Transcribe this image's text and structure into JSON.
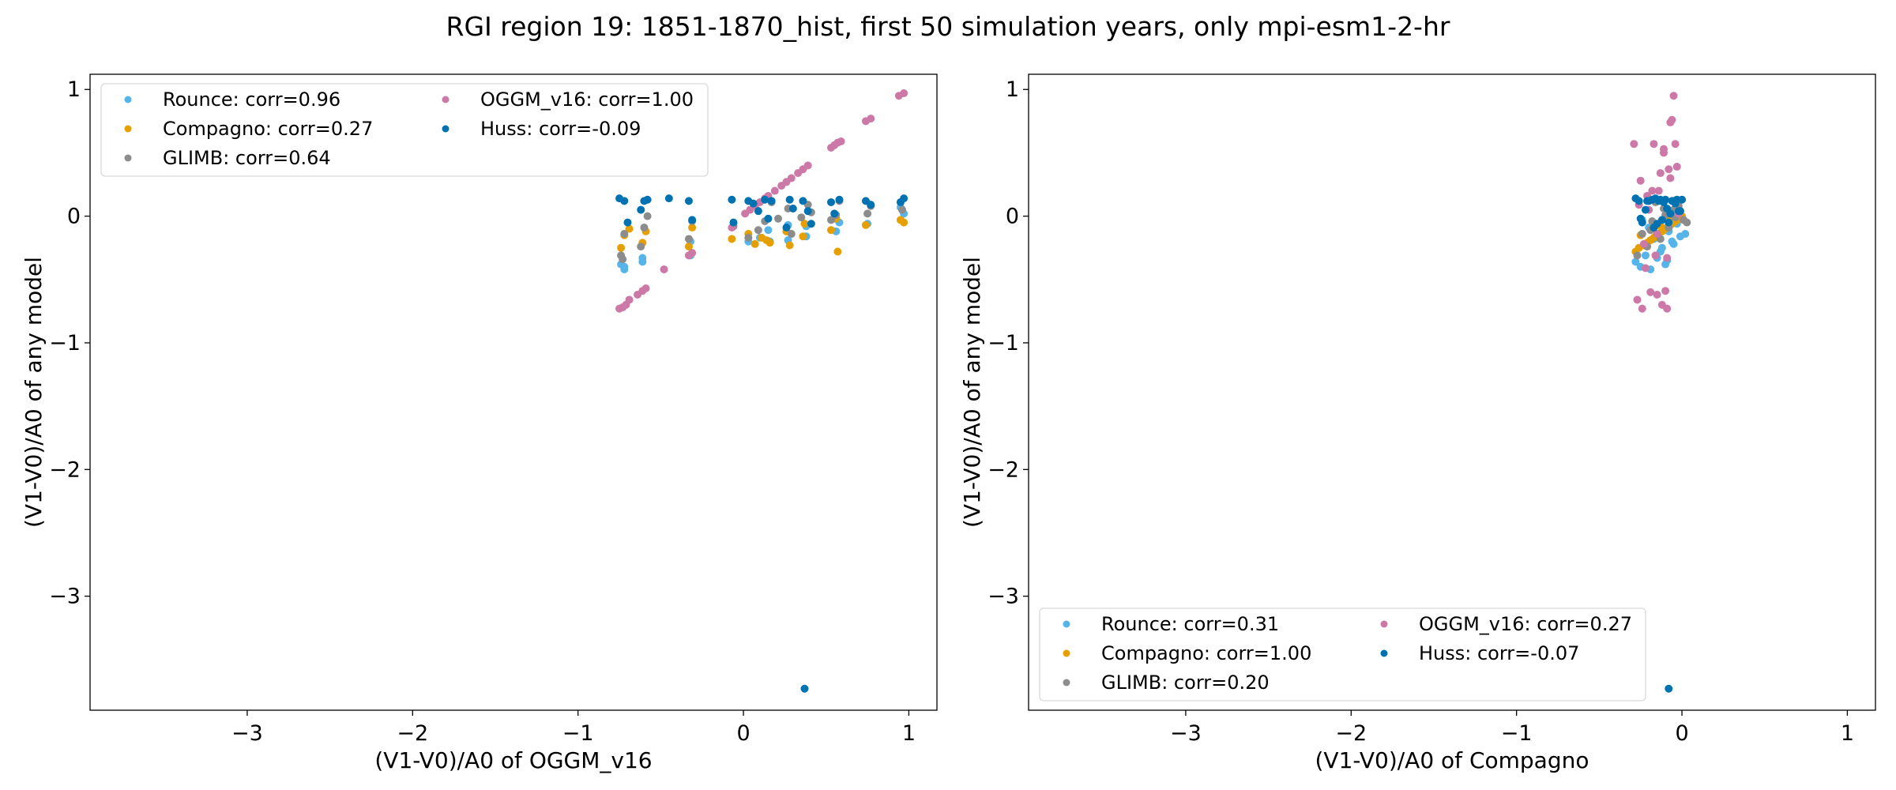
{
  "figure": {
    "title": "RGI region 19: 1851-1870_hist, first 50 simulation years, only mpi-esm1-2-hr"
  },
  "colors": {
    "Rounce": "#56b4e9",
    "Compagno": "#e69f00",
    "GLIMB": "#8c8c8c",
    "OGGM_v16": "#cc79a7",
    "Huss": "#0072b2"
  },
  "chart_data": [
    {
      "type": "scatter",
      "xlabel": "(V1-V0)/A0 of OGGM_v16",
      "ylabel": "(V1-V0)/A0 of any model",
      "xlim": [
        -3.95,
        1.17
      ],
      "ylim": [
        -3.9,
        1.12
      ],
      "xticks": [
        -3,
        -2,
        -1,
        0,
        1
      ],
      "yticks": [
        1,
        0,
        -1,
        -2,
        -3
      ],
      "xtick_labels": [
        "−3",
        "−2",
        "−1",
        "0",
        "1"
      ],
      "ytick_labels": [
        "1",
        "0",
        "−1",
        "−2",
        "−3"
      ],
      "legend_position": "upper-left",
      "legend_columns": 2,
      "legend": [
        "Rounce: corr=0.96",
        "Compagno: corr=0.27",
        "GLIMB: corr=0.64",
        "OGGM_v16: corr=1.00",
        "Huss: corr=-0.09"
      ],
      "series": [
        {
          "key": "Rounce",
          "x": [
            -0.74,
            -0.72,
            -0.72,
            -0.61,
            -0.61,
            -0.32,
            -0.32,
            0.03,
            0.1,
            0.15,
            0.16,
            0.27,
            0.27,
            0.38,
            0.38,
            0.56,
            0.58,
            0.75,
            0.95,
            0.97
          ],
          "y": [
            -0.38,
            -0.4,
            -0.42,
            -0.33,
            -0.36,
            -0.2,
            -0.31,
            -0.2,
            -0.17,
            -0.11,
            -0.2,
            -0.19,
            -0.07,
            -0.16,
            -0.08,
            -0.12,
            -0.05,
            -0.06,
            0.07,
            0.02
          ]
        },
        {
          "key": "Compagno",
          "x": [
            -0.74,
            -0.72,
            -0.69,
            -0.61,
            -0.59,
            -0.33,
            -0.31,
            -0.07,
            0.03,
            0.07,
            0.11,
            0.14,
            0.16,
            0.26,
            0.28,
            0.36,
            0.37,
            0.53,
            0.56,
            0.57,
            0.74,
            0.95,
            0.97
          ],
          "y": [
            -0.25,
            -0.15,
            -0.1,
            -0.21,
            -0.12,
            -0.24,
            -0.09,
            -0.18,
            -0.14,
            -0.22,
            -0.17,
            -0.19,
            -0.21,
            -0.12,
            -0.23,
            -0.16,
            -0.06,
            -0.11,
            -0.02,
            -0.28,
            -0.07,
            -0.03,
            -0.05
          ]
        },
        {
          "key": "GLIMB",
          "x": [
            -0.74,
            -0.73,
            -0.72,
            -0.62,
            -0.6,
            -0.58,
            -0.33,
            -0.31,
            -0.06,
            0.03,
            0.09,
            0.13,
            0.17,
            0.21,
            0.27,
            0.29,
            0.35,
            0.39,
            0.41,
            0.53,
            0.56,
            0.58,
            0.75,
            0.77,
            0.96
          ],
          "y": [
            -0.31,
            -0.34,
            -0.14,
            -0.24,
            -0.09,
            0.0,
            -0.18,
            -0.04,
            -0.08,
            -0.17,
            -0.11,
            -0.04,
            0.11,
            -0.02,
            0.06,
            -0.14,
            -0.01,
            0.09,
            0.03,
            -0.03,
            0.01,
            0.12,
            0.02,
            0.08,
            0.05
          ]
        },
        {
          "key": "OGGM_v16",
          "x": [
            -0.75,
            -0.73,
            -0.71,
            -0.69,
            -0.64,
            -0.61,
            -0.59,
            -0.48,
            -0.33,
            -0.31,
            -0.07,
            0.01,
            0.04,
            0.07,
            0.1,
            0.13,
            0.15,
            0.19,
            0.23,
            0.26,
            0.29,
            0.33,
            0.36,
            0.39,
            0.53,
            0.55,
            0.57,
            0.59,
            0.74,
            0.77,
            0.94,
            0.97
          ],
          "y": [
            -0.73,
            -0.72,
            -0.7,
            -0.66,
            -0.62,
            -0.59,
            -0.57,
            -0.42,
            -0.31,
            -0.29,
            -0.09,
            0.02,
            0.05,
            0.08,
            0.11,
            0.14,
            0.16,
            0.2,
            0.24,
            0.27,
            0.3,
            0.34,
            0.37,
            0.4,
            0.54,
            0.56,
            0.58,
            0.59,
            0.75,
            0.77,
            0.95,
            0.97
          ]
        },
        {
          "key": "Huss",
          "x": [
            -0.75,
            -0.72,
            -0.7,
            -0.62,
            -0.6,
            -0.58,
            -0.45,
            -0.33,
            -0.31,
            -0.07,
            -0.06,
            0.03,
            0.06,
            0.09,
            0.13,
            0.15,
            0.17,
            0.26,
            0.28,
            0.3,
            0.36,
            0.39,
            0.41,
            0.53,
            0.55,
            0.58,
            0.74,
            0.77,
            0.95,
            0.97,
            0.37
          ],
          "y": [
            0.14,
            0.12,
            -0.05,
            0.05,
            0.12,
            0.13,
            0.14,
            0.12,
            -0.03,
            0.13,
            -0.05,
            0.12,
            0.1,
            0.04,
            0.13,
            -0.02,
            0.12,
            -0.09,
            0.13,
            0.06,
            0.12,
            0.04,
            -0.06,
            0.11,
            0.02,
            0.13,
            0.12,
            0.09,
            0.11,
            0.14,
            -3.73
          ]
        }
      ]
    },
    {
      "type": "scatter",
      "xlabel": "(V1-V0)/A0 of Compagno",
      "ylabel": "(V1-V0)/A0 of any model",
      "xlim": [
        -3.95,
        1.17
      ],
      "ylim": [
        -3.9,
        1.12
      ],
      "xticks": [
        -3,
        -2,
        -1,
        0,
        1
      ],
      "yticks": [
        1,
        0,
        -1,
        -2,
        -3
      ],
      "xtick_labels": [
        "−3",
        "−2",
        "−1",
        "0",
        "1"
      ],
      "ytick_labels": [
        "1",
        "0",
        "−1",
        "−2",
        "−3"
      ],
      "legend_position": "lower-left",
      "legend_columns": 2,
      "legend": [
        "Rounce: corr=0.31",
        "Compagno: corr=1.00",
        "GLIMB: corr=0.20",
        "OGGM_v16: corr=0.27",
        "Huss: corr=-0.07"
      ],
      "series": [
        {
          "key": "Rounce",
          "x": [
            -0.28,
            -0.25,
            -0.22,
            -0.19,
            -0.17,
            -0.15,
            -0.12,
            -0.1,
            -0.08,
            -0.06,
            -0.03,
            -0.01,
            0.02,
            -0.24,
            -0.2,
            -0.13,
            -0.09,
            -0.05
          ],
          "y": [
            -0.36,
            -0.4,
            -0.31,
            -0.42,
            -0.18,
            -0.33,
            -0.25,
            -0.38,
            -0.12,
            -0.2,
            -0.06,
            -0.16,
            -0.14,
            -0.03,
            -0.09,
            -0.28,
            -0.35,
            -0.22
          ]
        },
        {
          "key": "Compagno",
          "x": [
            -0.28,
            -0.26,
            -0.23,
            -0.21,
            -0.19,
            -0.17,
            -0.16,
            -0.14,
            -0.12,
            -0.11,
            -0.09,
            -0.07,
            -0.06,
            -0.05,
            -0.03,
            -0.02,
            0.0,
            -0.25,
            -0.18,
            -0.13,
            -0.08,
            -0.04
          ],
          "y": [
            -0.28,
            -0.25,
            -0.23,
            -0.21,
            -0.19,
            -0.17,
            -0.16,
            -0.14,
            -0.12,
            -0.11,
            -0.09,
            -0.07,
            -0.06,
            -0.05,
            -0.03,
            -0.02,
            0.0,
            -0.15,
            -0.1,
            -0.08,
            -0.02,
            0.03
          ]
        },
        {
          "key": "GLIMB",
          "x": [
            -0.27,
            -0.24,
            -0.21,
            -0.18,
            -0.16,
            -0.13,
            -0.11,
            -0.08,
            -0.06,
            -0.04,
            -0.02,
            0.01,
            0.03,
            -0.19,
            -0.1,
            -0.05
          ],
          "y": [
            -0.31,
            -0.14,
            -0.24,
            -0.04,
            0.11,
            -0.18,
            0.06,
            -0.09,
            0.03,
            -0.01,
            0.08,
            -0.03,
            -0.05,
            -0.11,
            0.01,
            0.05
          ]
        },
        {
          "key": "OGGM_v16",
          "x": [
            -0.29,
            -0.27,
            -0.25,
            -0.24,
            -0.21,
            -0.19,
            -0.17,
            -0.15,
            -0.14,
            -0.12,
            -0.11,
            -0.09,
            -0.08,
            -0.06,
            -0.05,
            -0.04,
            -0.03,
            -0.02,
            -0.2,
            -0.16,
            -0.1,
            -0.07,
            -0.13,
            -0.18,
            -0.22,
            -0.26,
            -0.23,
            -0.11,
            -0.09,
            -0.05,
            -0.07,
            -0.15
          ],
          "y": [
            0.57,
            -0.66,
            0.28,
            -0.73,
            0.16,
            -0.6,
            0.57,
            -0.62,
            0.2,
            -0.7,
            0.5,
            -0.73,
            0.37,
            0.76,
            0.95,
            0.57,
            0.39,
            0.02,
            0.05,
            -0.31,
            -0.59,
            0.74,
            0.34,
            0.2,
            -0.41,
            0.09,
            -0.22,
            0.53,
            -0.33,
            0.12,
            0.3,
            -0.14
          ]
        },
        {
          "key": "Huss",
          "x": [
            -0.28,
            -0.26,
            -0.24,
            -0.22,
            -0.2,
            -0.18,
            -0.16,
            -0.14,
            -0.12,
            -0.1,
            -0.08,
            -0.06,
            -0.04,
            -0.02,
            0.0,
            -0.25,
            -0.21,
            -0.17,
            -0.13,
            -0.09,
            -0.05,
            -0.01,
            -0.15,
            -0.11,
            -0.07,
            -0.03,
            -0.08
          ],
          "y": [
            0.14,
            0.12,
            -0.05,
            0.05,
            0.12,
            0.13,
            0.14,
            0.12,
            -0.03,
            0.13,
            -0.05,
            0.12,
            0.1,
            0.04,
            0.13,
            -0.02,
            0.12,
            -0.09,
            0.13,
            0.06,
            0.12,
            0.04,
            -0.06,
            0.11,
            0.02,
            0.13,
            -3.73
          ]
        }
      ]
    }
  ]
}
